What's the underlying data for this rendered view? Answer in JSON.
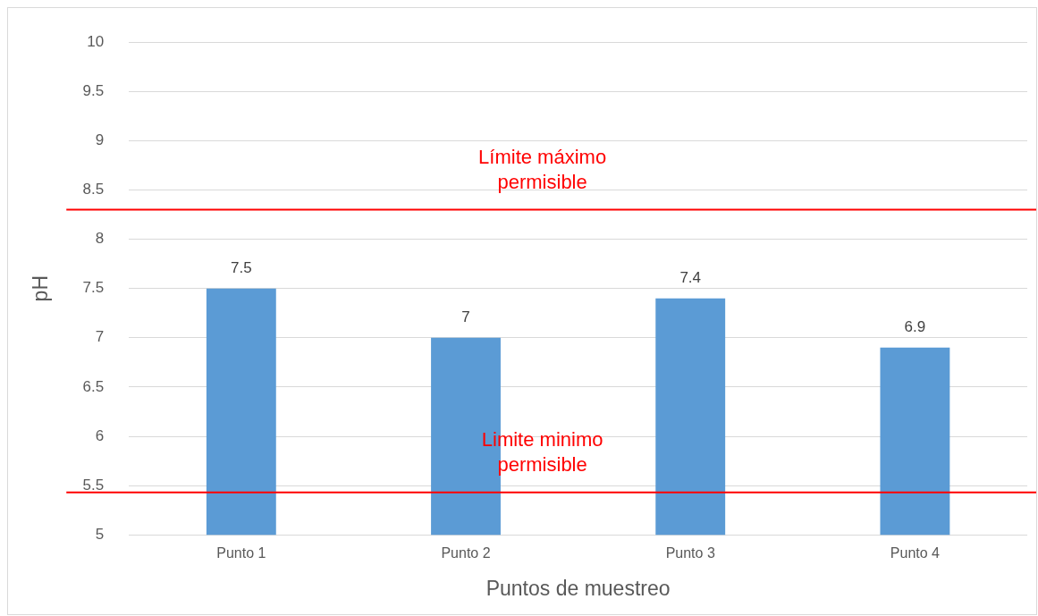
{
  "chart_data": {
    "type": "bar",
    "xlabel": "Puntos de muestreo",
    "ylabel": "pH",
    "categories": [
      "Punto 1",
      "Punto 2",
      "Punto 3",
      "Punto 4"
    ],
    "values": [
      7.5,
      7,
      7.4,
      6.9
    ],
    "color": "#5b9bd5",
    "ylim": [
      5,
      10
    ],
    "yticks": [
      5,
      5.5,
      6,
      6.5,
      7,
      7.5,
      8,
      8.5,
      9,
      9.5,
      10
    ],
    "grid": "y",
    "data_labels": true,
    "ref_lines": [
      {
        "axis": "y",
        "value": 8.3,
        "label": "Límite máximo permisible",
        "color": "#ff0000"
      },
      {
        "axis": "y",
        "value": 5.43,
        "label": "Limite minimo permisible",
        "color": "#ff0000"
      }
    ]
  }
}
